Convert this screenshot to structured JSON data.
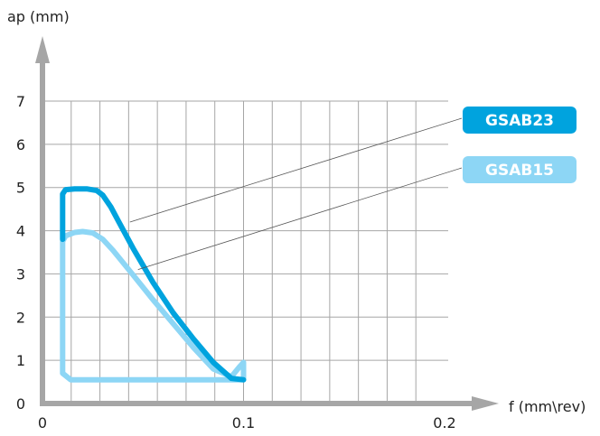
{
  "chart_data": {
    "type": "area",
    "xlabel": "f (mm\\rev)",
    "ylabel": "ap (mm)",
    "xlim": [
      0,
      0.2
    ],
    "ylim": [
      0,
      7
    ],
    "x_ticks": [
      "0",
      "0.1",
      "0.2"
    ],
    "y_ticks": [
      "0",
      "1",
      "2",
      "3",
      "4",
      "5",
      "6",
      "7"
    ],
    "grid": true,
    "x_grid_step": 0.014286,
    "series": [
      {
        "name": "GSAB23",
        "color": "#00a3de",
        "points": [
          [
            0.01,
            3.8
          ],
          [
            0.01,
            4.85
          ],
          [
            0.0115,
            4.95
          ],
          [
            0.016,
            4.97
          ],
          [
            0.022,
            4.97
          ],
          [
            0.027,
            4.93
          ],
          [
            0.03,
            4.82
          ],
          [
            0.034,
            4.55
          ],
          [
            0.038,
            4.2
          ],
          [
            0.045,
            3.6
          ],
          [
            0.055,
            2.8
          ],
          [
            0.065,
            2.1
          ],
          [
            0.075,
            1.5
          ],
          [
            0.085,
            0.95
          ],
          [
            0.094,
            0.58
          ],
          [
            0.1,
            0.55
          ]
        ]
      },
      {
        "name": "GSAB15",
        "color": "#8dd6f5",
        "points": [
          [
            0.01,
            0.7
          ],
          [
            0.01,
            3.75
          ],
          [
            0.0115,
            3.88
          ],
          [
            0.016,
            3.96
          ],
          [
            0.02,
            3.98
          ],
          [
            0.025,
            3.95
          ],
          [
            0.03,
            3.8
          ],
          [
            0.035,
            3.55
          ],
          [
            0.045,
            2.98
          ],
          [
            0.055,
            2.4
          ],
          [
            0.065,
            1.85
          ],
          [
            0.075,
            1.3
          ],
          [
            0.085,
            0.8
          ],
          [
            0.094,
            0.62
          ],
          [
            0.098,
            0.85
          ],
          [
            0.1,
            0.95
          ],
          [
            0.1,
            0.55
          ],
          [
            0.014,
            0.55
          ],
          [
            0.01,
            0.7
          ]
        ]
      }
    ],
    "legend": [
      {
        "label": "GSAB23",
        "color": "#00a3de",
        "anchor": [
          0.0435,
          4.2
        ]
      },
      {
        "label": "GSAB15",
        "color": "#8dd6f5",
        "anchor": [
          0.0475,
          3.1
        ]
      }
    ],
    "colors": {
      "axis": "#a6a6a6",
      "grid": "#a6a6a6",
      "text": "#222222"
    }
  }
}
